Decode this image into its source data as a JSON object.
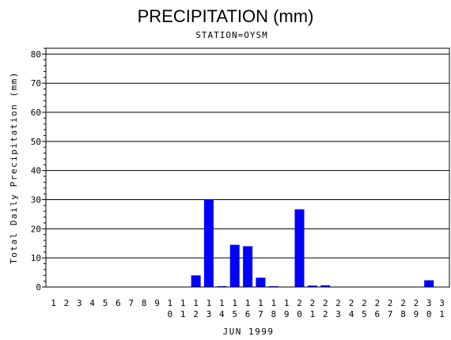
{
  "chart_data": {
    "type": "bar",
    "title": "PRECIPITATION (mm)",
    "subtitle": "STATION=OYSM",
    "xlabel": "JUN 1999",
    "ylabel": "Total Daily Precipitation (mm)",
    "ylim": [
      0,
      82
    ],
    "yticks": [
      0,
      10,
      20,
      30,
      40,
      50,
      60,
      70,
      80
    ],
    "grid": true,
    "bar_color": "#0000ff",
    "categories": [
      "1",
      "2",
      "3",
      "4",
      "5",
      "6",
      "7",
      "8",
      "9",
      "10",
      "11",
      "12",
      "13",
      "14",
      "15",
      "16",
      "17",
      "18",
      "19",
      "20",
      "21",
      "22",
      "23",
      "24",
      "25",
      "26",
      "27",
      "28",
      "29",
      "30",
      "31"
    ],
    "values": [
      0,
      0,
      0,
      0,
      0,
      0,
      0,
      0,
      0,
      0,
      0,
      4,
      30,
      0.3,
      14.5,
      14,
      3.2,
      0.3,
      0,
      26.7,
      0.5,
      0.6,
      0,
      0,
      0,
      0,
      0,
      0,
      0,
      2.3,
      0
    ]
  }
}
